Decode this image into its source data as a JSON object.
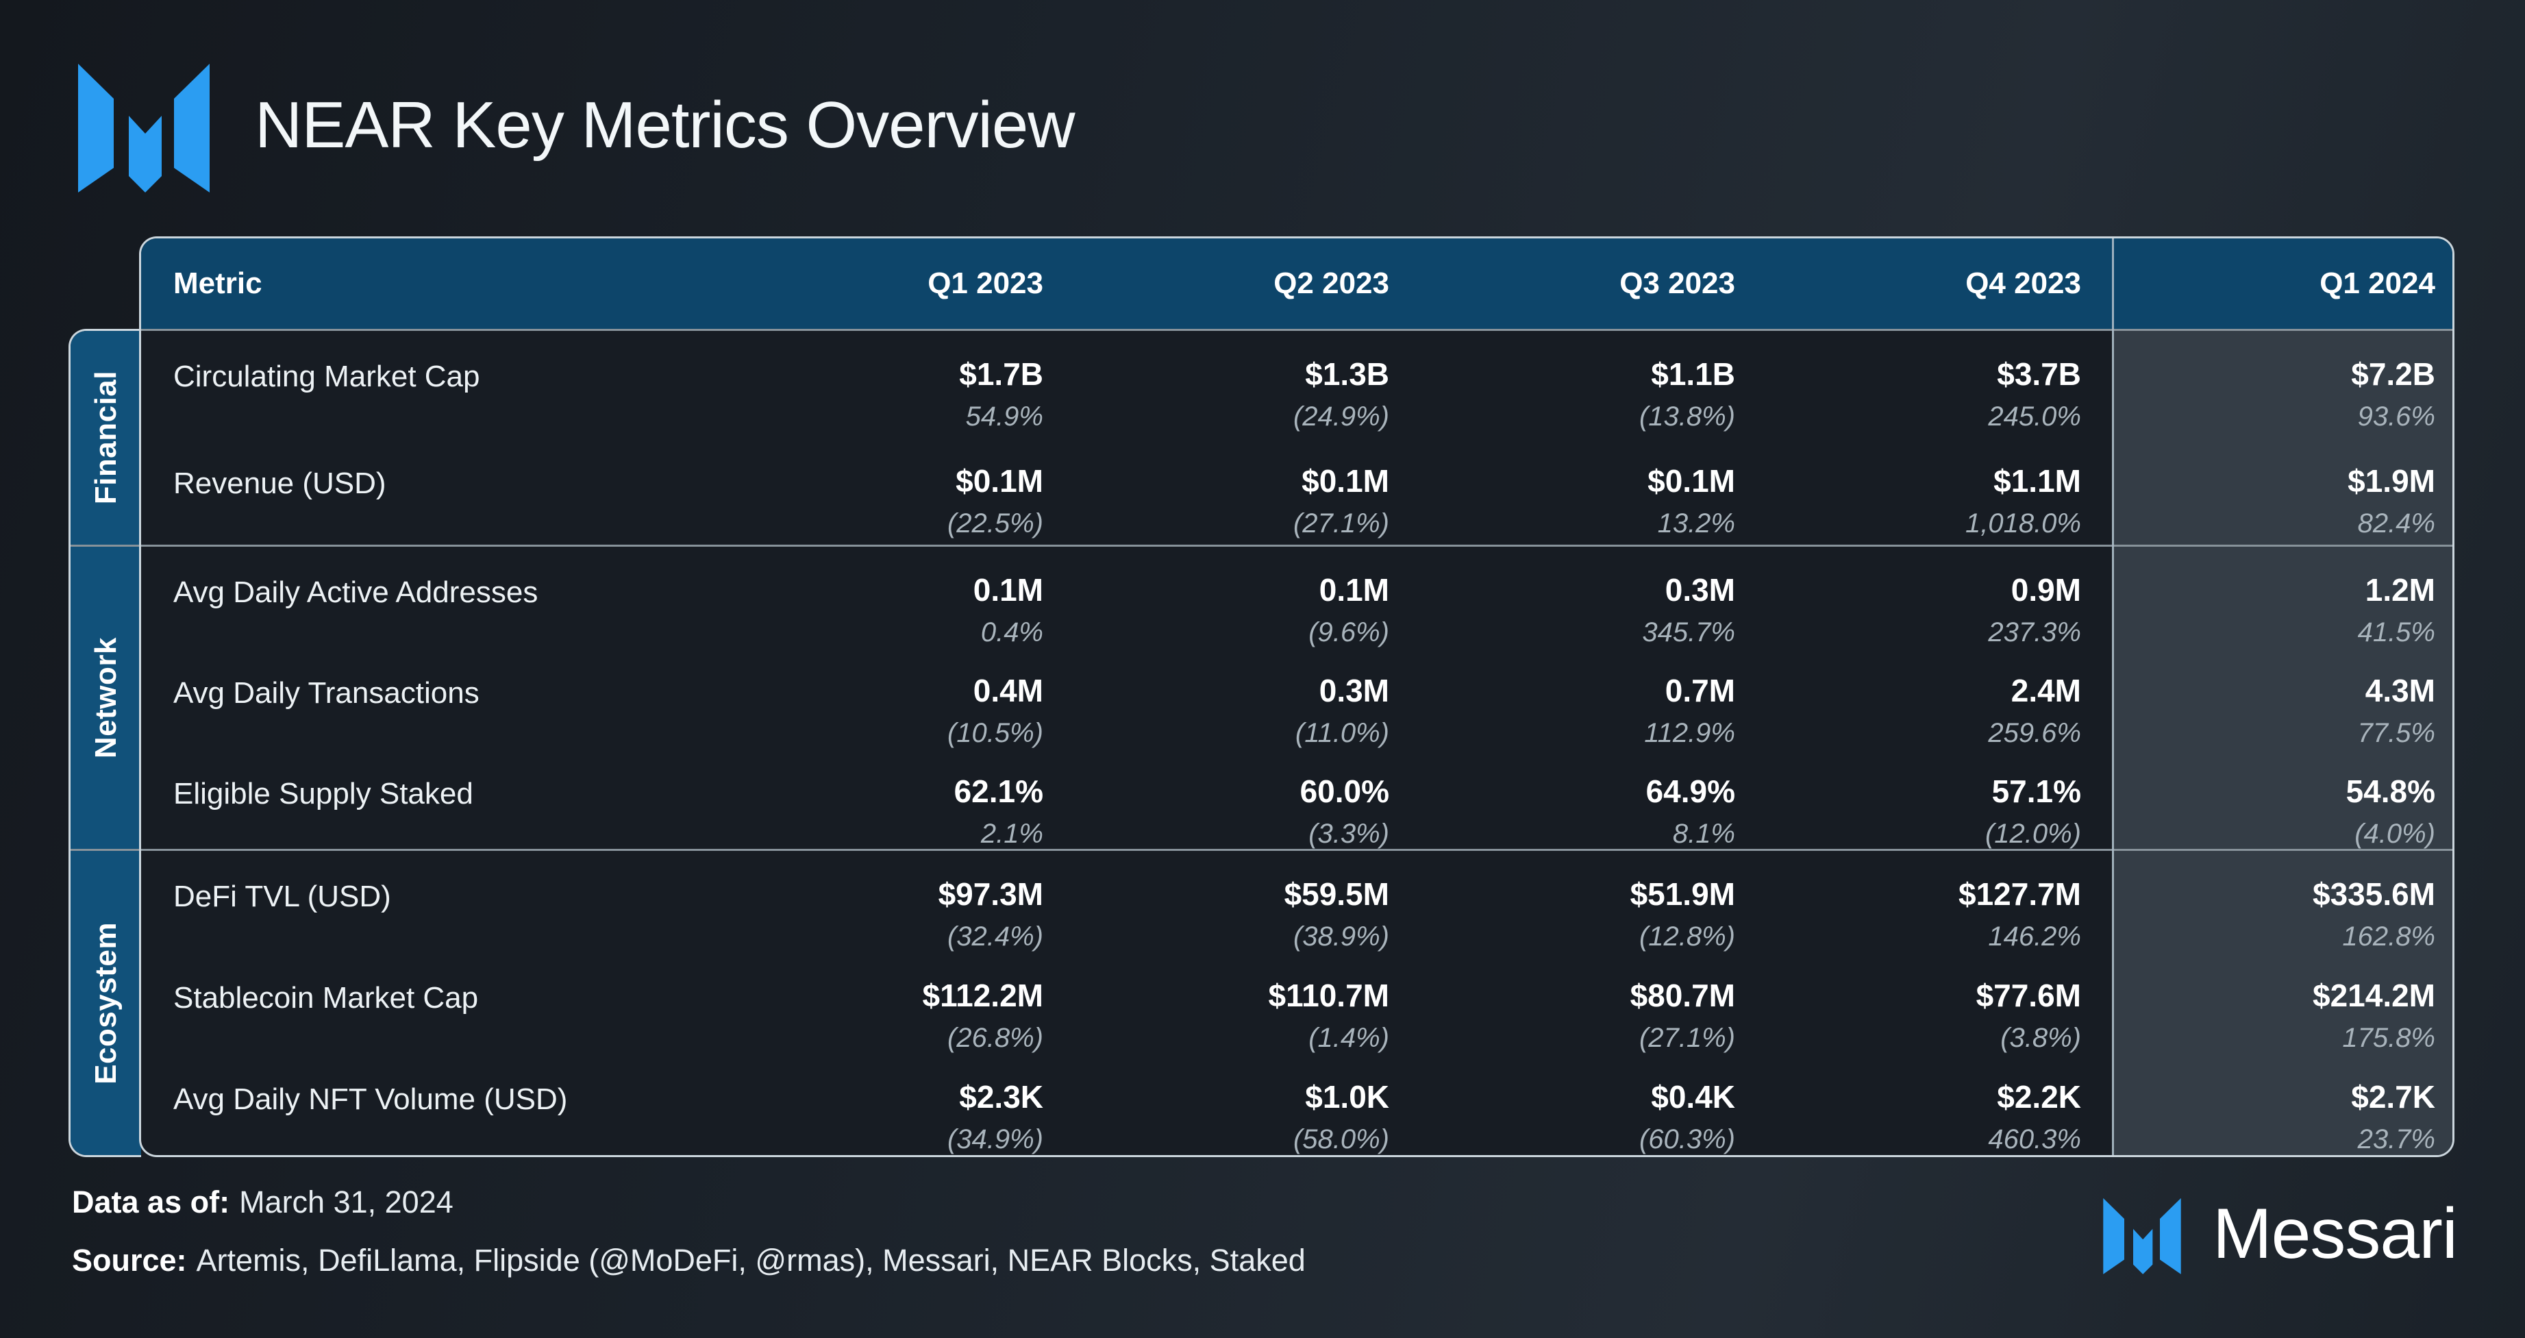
{
  "title": "NEAR Key Metrics Overview",
  "brand": {
    "name": "Messari"
  },
  "chart_data": {
    "type": "table",
    "title": "NEAR Key Metrics Overview",
    "columns": [
      "Metric",
      "Q1 2023",
      "Q2 2023",
      "Q3 2023",
      "Q4 2023",
      "Q1 2024"
    ],
    "highlight_column": "Q1 2024",
    "change_note": "italic second line per cell is quarter-over-quarter % change; parentheses denote negative",
    "row_groups": [
      {
        "label": "Financial",
        "rows": [
          {
            "metric": "Circulating Market Cap",
            "values": [
              "$1.7B",
              "$1.3B",
              "$1.1B",
              "$3.7B",
              "$7.2B"
            ],
            "qoq_change": [
              "54.9%",
              "(24.9%)",
              "(13.8%)",
              "245.0%",
              "93.6%"
            ]
          },
          {
            "metric": "Revenue (USD)",
            "values": [
              "$0.1M",
              "$0.1M",
              "$0.1M",
              "$1.1M",
              "$1.9M"
            ],
            "qoq_change": [
              "(22.5%)",
              "(27.1%)",
              "13.2%",
              "1,018.0%",
              "82.4%"
            ]
          }
        ]
      },
      {
        "label": "Network",
        "rows": [
          {
            "metric": "Avg Daily Active Addresses",
            "values": [
              "0.1M",
              "0.1M",
              "0.3M",
              "0.9M",
              "1.2M"
            ],
            "qoq_change": [
              "0.4%",
              "(9.6%)",
              "345.7%",
              "237.3%",
              "41.5%"
            ]
          },
          {
            "metric": "Avg Daily Transactions",
            "values": [
              "0.4M",
              "0.3M",
              "0.7M",
              "2.4M",
              "4.3M"
            ],
            "qoq_change": [
              "(10.5%)",
              "(11.0%)",
              "112.9%",
              "259.6%",
              "77.5%"
            ]
          },
          {
            "metric": "Eligible Supply Staked",
            "values": [
              "62.1%",
              "60.0%",
              "64.9%",
              "57.1%",
              "54.8%"
            ],
            "qoq_change": [
              "2.1%",
              "(3.3%)",
              "8.1%",
              "(12.0%)",
              "(4.0%)"
            ]
          }
        ]
      },
      {
        "label": "Ecosystem",
        "rows": [
          {
            "metric": "DeFi TVL (USD)",
            "values": [
              "$97.3M",
              "$59.5M",
              "$51.9M",
              "$127.7M",
              "$335.6M"
            ],
            "qoq_change": [
              "(32.4%)",
              "(38.9%)",
              "(12.8%)",
              "146.2%",
              "162.8%"
            ]
          },
          {
            "metric": "Stablecoin Market Cap",
            "values": [
              "$112.2M",
              "$110.7M",
              "$80.7M",
              "$77.6M",
              "$214.2M"
            ],
            "qoq_change": [
              "(26.8%)",
              "(1.4%)",
              "(27.1%)",
              "(3.8%)",
              "175.8%"
            ]
          },
          {
            "metric": "Avg Daily NFT Volume (USD)",
            "values": [
              "$2.3K",
              "$1.0K",
              "$0.4K",
              "$2.2K",
              "$2.7K"
            ],
            "qoq_change": [
              "(34.9%)",
              "(58.0%)",
              "(60.3%)",
              "460.3%",
              "23.7%"
            ]
          }
        ]
      }
    ]
  },
  "footer": {
    "data_as_of_label": "Data as of:",
    "data_as_of_value": "March 31, 2024",
    "source_label": "Source:",
    "source_value": "Artemis, DefiLlama, Flipside (@MoDeFi, @rmas), Messari, NEAR Blocks, Staked"
  },
  "icons": {
    "logo_mark": "messari-logo-icon"
  },
  "colors": {
    "accent_blue": "#2b9df2",
    "header_bg": "#0d456a",
    "group_label_bg": "#11517a",
    "table_body_bg": "#171c23",
    "highlight_column_bg": "#343d46",
    "outer_border": "#cbd6dd",
    "group_divider": "#87929a",
    "value_text": "#ffffff",
    "change_text": "#a9b4bc",
    "page_bg": "#1b222a"
  }
}
